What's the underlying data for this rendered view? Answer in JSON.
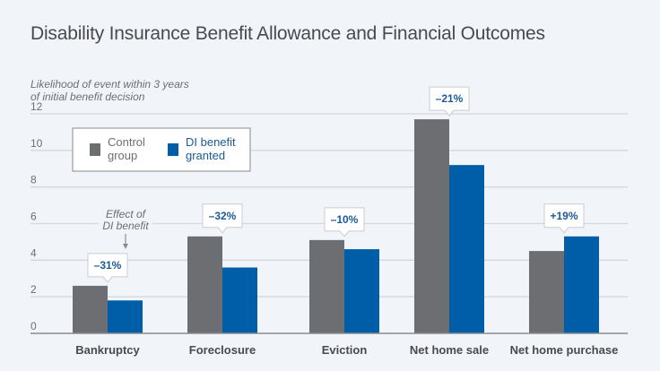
{
  "chart_data": {
    "type": "bar",
    "title": "Disability Insurance Benefit Allowance and Financial Outcomes",
    "ylabel": "Likelihood of event within 3 years of initial benefit decision",
    "ylabel_lines": [
      "Likelihood of event within 3 years",
      "of initial benefit decision"
    ],
    "xlabel": "",
    "ylim": [
      0,
      12
    ],
    "yticks": [
      0,
      2,
      4,
      6,
      8,
      10,
      12
    ],
    "grid": true,
    "legend_position": "top-left",
    "categories": [
      "Bankruptcy",
      "Foreclosure",
      "Eviction",
      "Net home sale",
      "Net home purchase"
    ],
    "series": [
      {
        "name": "Control group",
        "legend_lines": [
          "Control",
          "group"
        ],
        "color": "#6d6e71",
        "values": [
          2.6,
          5.3,
          5.1,
          11.7,
          4.5
        ]
      },
      {
        "name": "DI benefit granted",
        "legend_lines": [
          "DI benefit",
          "granted"
        ],
        "color": "#005ea8",
        "values": [
          1.8,
          3.6,
          4.6,
          9.2,
          5.3
        ]
      }
    ],
    "effects": [
      "–31%",
      "–32%",
      "–10%",
      "–21%",
      "+19%"
    ],
    "annotation": {
      "lines": [
        "Effect of",
        "DI benefit"
      ],
      "category": "Bankruptcy"
    }
  },
  "colors": {
    "background": "#f1f5f9",
    "grid": "#d4d7db",
    "axis": "#8a8c8f",
    "callout_text": "#1c5a96",
    "legend_control_text": "#6d6e71",
    "legend_di_text": "#1c5a96"
  }
}
